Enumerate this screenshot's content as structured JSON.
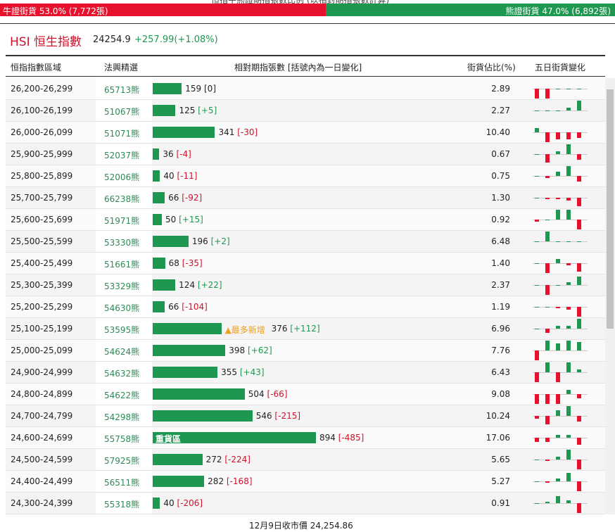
{
  "caption": "恒指牛熊證期指張數比例 (以相對期指張數計算)",
  "summary": {
    "bull_label": "牛證街貨",
    "bull_pct": {
      "value": 53,
      "label": "53.0%"
    },
    "bull_count": "(7,772張)",
    "bear_label": "熊證街貨",
    "bear_pct": {
      "value": 47,
      "label": "47.0%"
    },
    "bear_count": "(6,892張)"
  },
  "header": {
    "title": "HSI 恒生指數",
    "price": "24254.9",
    "change": "+257.99(+1.08%)"
  },
  "table": {
    "columns": [
      "恒指指數區域",
      "法興精選",
      "相對期指張數 [括號內為一日變化]",
      "街貨佔比(%)",
      "五日街貨變化"
    ],
    "rows": [
      {
        "range": "26,200-26,299",
        "code": "65713熊",
        "count": 159,
        "change": 0,
        "change_label": "0",
        "share": 2.89,
        "five_day": [
          -14,
          -14,
          0,
          0,
          0
        ]
      },
      {
        "range": "26,100-26,199",
        "code": "51067熊",
        "count": 125,
        "change": 5,
        "change_label": "+5",
        "share": 2.27,
        "five_day": [
          0,
          0,
          0,
          4,
          14
        ]
      },
      {
        "range": "26,000-26,099",
        "code": "51071熊",
        "count": 341,
        "change": -30,
        "change_label": "-30",
        "share": 10.4,
        "share_label": "10.40",
        "five_day": [
          6,
          -14,
          -10,
          -10,
          -8
        ]
      },
      {
        "range": "25,900-25,999",
        "code": "52037熊",
        "count": 36,
        "change": -4,
        "change_label": "-4",
        "share": 0.67,
        "five_day": [
          0,
          -12,
          4,
          14,
          -8
        ]
      },
      {
        "range": "25,800-25,899",
        "code": "52006熊",
        "count": 40,
        "change": -11,
        "change_label": "-11",
        "share": 0.75,
        "five_day": [
          0,
          -3,
          6,
          14,
          -8
        ]
      },
      {
        "range": "25,700-25,799",
        "code": "66238熊",
        "count": 66,
        "change": -92,
        "change_label": "-92",
        "share": 1.3,
        "share_label": "1.30",
        "five_day": [
          0,
          -2,
          -2,
          -4,
          -12
        ]
      },
      {
        "range": "25,600-25,699",
        "code": "51971熊",
        "count": 50,
        "change": 15,
        "change_label": "+15",
        "share": 0.92,
        "five_day": [
          -3,
          0,
          14,
          14,
          -14
        ]
      },
      {
        "range": "25,500-25,599",
        "code": "53330熊",
        "count": 196,
        "change": 2,
        "change_label": "+2",
        "share": 6.48,
        "five_day": [
          0,
          14,
          0,
          0,
          0
        ]
      },
      {
        "range": "25,400-25,499",
        "code": "51661熊",
        "count": 68,
        "change": -35,
        "change_label": "-35",
        "share": 1.4,
        "share_label": "1.40",
        "five_day": [
          0,
          -14,
          6,
          -3,
          -12
        ]
      },
      {
        "range": "25,300-25,399",
        "code": "53329熊",
        "count": 124,
        "change": 22,
        "change_label": "+22",
        "share": 2.37,
        "five_day": [
          0,
          -14,
          0,
          4,
          12
        ]
      },
      {
        "range": "25,200-25,299",
        "code": "54630熊",
        "count": 66,
        "change": -104,
        "change_label": "-104",
        "share": 1.19,
        "five_day": [
          0,
          0,
          -2,
          -4,
          -14
        ]
      },
      {
        "range": "25,100-25,199",
        "code": "53595熊",
        "count": 376,
        "change": 112,
        "change_label": "+112",
        "share": 6.96,
        "five_day": [
          0,
          -6,
          4,
          4,
          14
        ],
        "note": "▲最多新增"
      },
      {
        "range": "25,000-25,099",
        "code": "54624熊",
        "count": 398,
        "change": 62,
        "change_label": "+62",
        "share": 7.76,
        "five_day": [
          -14,
          14,
          10,
          14,
          12
        ]
      },
      {
        "range": "24,900-24,999",
        "code": "54632熊",
        "count": 355,
        "change": 43,
        "change_label": "+43",
        "share": 6.43,
        "five_day": [
          -14,
          14,
          -14,
          14,
          4
        ]
      },
      {
        "range": "24,800-24,899",
        "code": "54622熊",
        "count": 504,
        "change": -66,
        "change_label": "-66",
        "share": 9.08,
        "five_day": [
          -14,
          -14,
          -14,
          6,
          -6
        ]
      },
      {
        "range": "24,700-24,799",
        "code": "54298熊",
        "count": 546,
        "change": -215,
        "change_label": "-215",
        "share": 10.24,
        "five_day": [
          -4,
          -12,
          8,
          14,
          -8
        ]
      },
      {
        "range": "24,600-24,699",
        "code": "55758熊",
        "count": 894,
        "change": -485,
        "change_label": "-485",
        "share": 17.06,
        "five_day": [
          -6,
          -6,
          4,
          4,
          -10
        ],
        "tag": "重貨區"
      },
      {
        "range": "24,500-24,599",
        "code": "57925熊",
        "count": 272,
        "change": -224,
        "change_label": "-224",
        "share": 5.65,
        "five_day": [
          0,
          -2,
          4,
          14,
          -14
        ]
      },
      {
        "range": "24,400-24,499",
        "code": "56511熊",
        "count": 282,
        "change": -168,
        "change_label": "-168",
        "share": 5.27,
        "five_day": [
          0,
          -2,
          4,
          12,
          -14
        ]
      },
      {
        "range": "24,300-24,399",
        "code": "55318熊",
        "count": 40,
        "change": -206,
        "change_label": "-206",
        "share": 0.91,
        "five_day": [
          0,
          2,
          10,
          4,
          -14
        ]
      }
    ]
  },
  "footer": "12月9日收市價 24,254.86"
}
